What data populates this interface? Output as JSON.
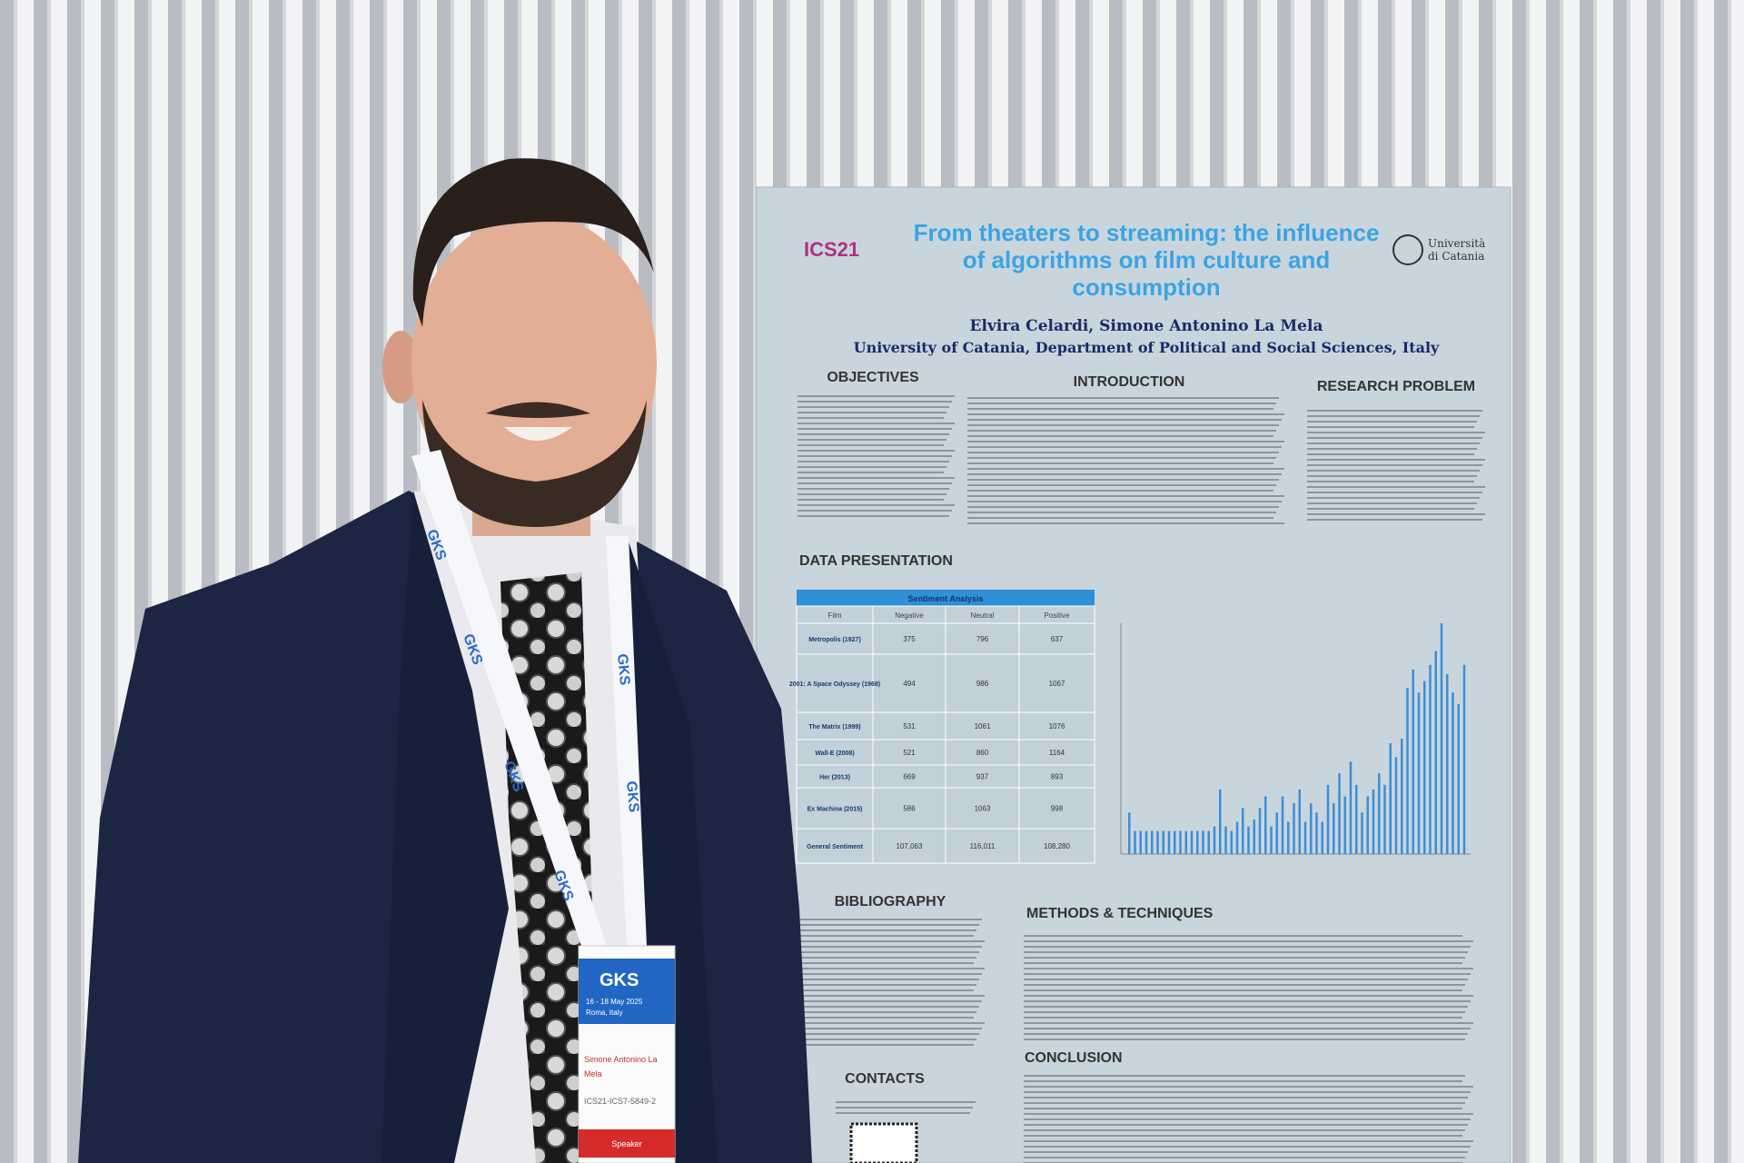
{
  "poster": {
    "title_lines": [
      "From theaters to streaming: the influence",
      "of algorithms on film culture and",
      "consumption"
    ],
    "authors": "Elvira Celardi, Simone Antonino La Mela",
    "affiliation": "University of Catania, Department of Political and Social Sciences, Italy",
    "logo_left": "ICS21",
    "university_lines": [
      "Università",
      "di Catania"
    ],
    "sections": {
      "objectives": "OBJECTIVES",
      "introduction": "INTRODUCTION",
      "research_problem": "RESEARCH PROBLEM",
      "data_presentation": "DATA PRESENTATION",
      "bibliography": "BIBLIOGRAPHY",
      "methods": "METHODS & TECHNIQUES",
      "conclusion": "CONCLUSION",
      "contacts": "CONTACTS"
    },
    "table": {
      "title": "Sentiment Analysis",
      "header": [
        "Film",
        "Negative",
        "Neutral",
        "Positive"
      ],
      "rows": [
        [
          "Metropolis (1927)",
          "375",
          "796",
          "637"
        ],
        [
          "2001: A Space Odyssey (1968)",
          "494",
          "986",
          "1067"
        ],
        [
          "The Matrix (1999)",
          "531",
          "1061",
          "1076"
        ],
        [
          "Wall-E (2008)",
          "521",
          "860",
          "1164"
        ],
        [
          "Her (2013)",
          "669",
          "937",
          "893"
        ],
        [
          "Ex Machina (2015)",
          "586",
          "1063",
          "998"
        ],
        [
          "General Sentiment",
          "107,063",
          "116,011",
          "108,280"
        ]
      ]
    },
    "figure": {
      "ylim": [
        0,
        100
      ],
      "values": [
        18,
        10,
        10,
        10,
        10,
        10,
        10,
        10,
        10,
        10,
        10,
        10,
        10,
        10,
        10,
        12,
        28,
        12,
        10,
        14,
        20,
        12,
        15,
        20,
        25,
        12,
        18,
        25,
        14,
        22,
        28,
        14,
        22,
        18,
        14,
        30,
        22,
        35,
        25,
        40,
        30,
        18,
        25,
        28,
        35,
        30,
        48,
        42,
        50,
        72,
        80,
        70,
        75,
        82,
        88,
        100,
        78,
        70,
        65,
        82
      ]
    }
  },
  "lanyard": "GKS",
  "badge": {
    "logo": "GKS",
    "dates": "16 - 18 May 2025",
    "place": "Roma, Italy",
    "name_lines": [
      "Simone Antonino La",
      "Mela"
    ],
    "code": "ICS21-ICS7-5849-2",
    "role": "Speaker"
  }
}
